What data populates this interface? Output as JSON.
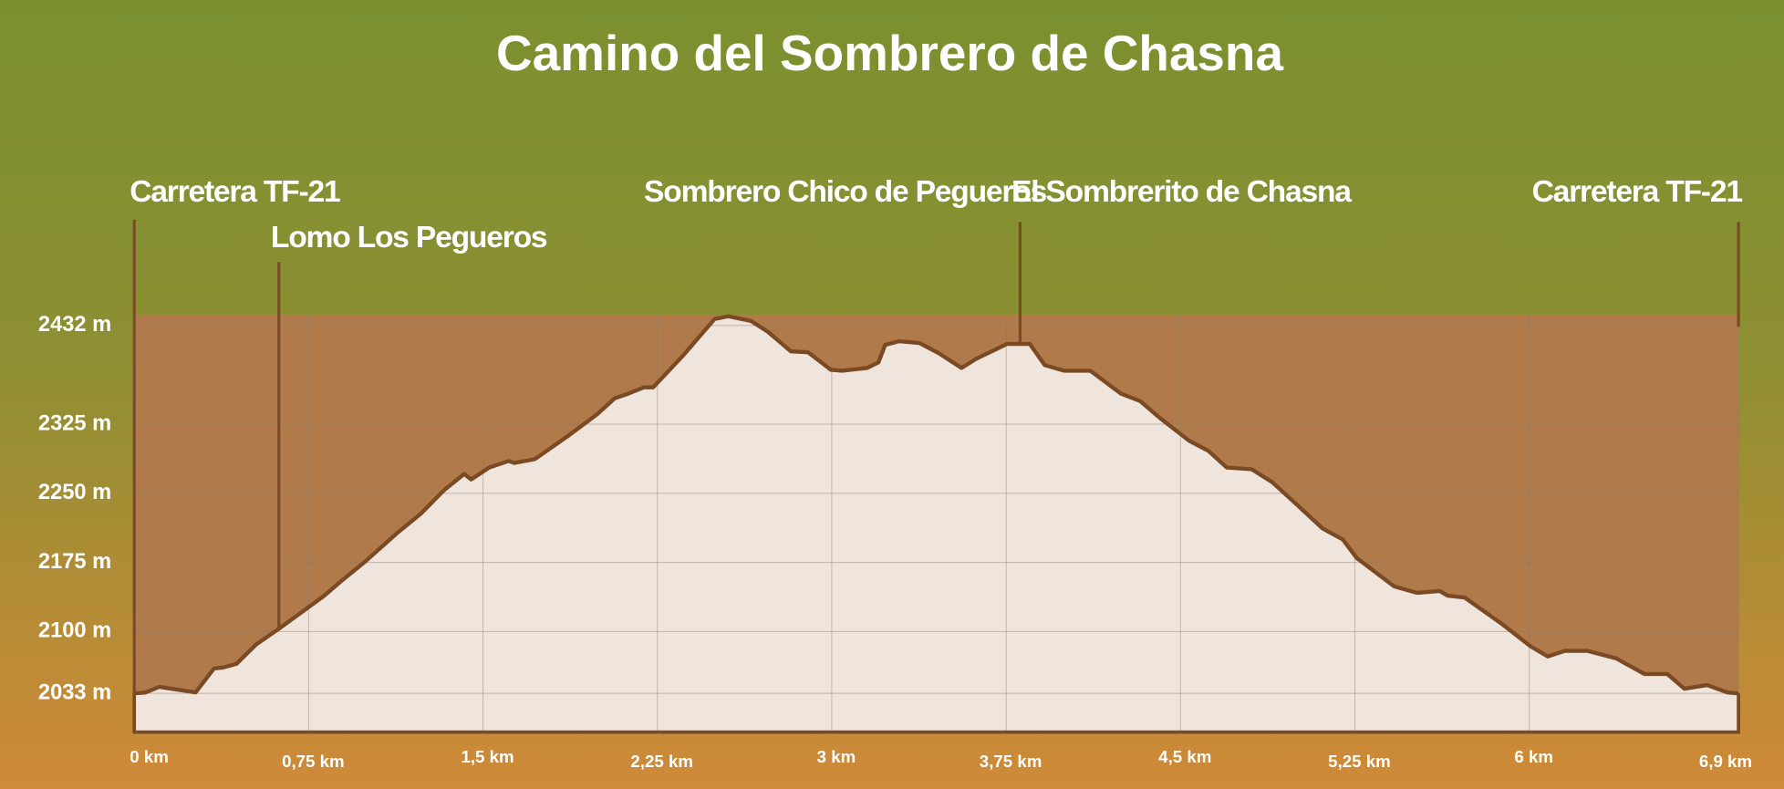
{
  "chart_data": {
    "type": "elevation-profile",
    "title": "Camino del Sombrero de Chasna",
    "x": [
      0,
      0.049,
      0.108,
      0.264,
      0.343,
      0.382,
      0.44,
      0.524,
      0.622,
      0.817,
      0.891,
      0.989,
      1.136,
      1.233,
      1.331,
      1.419,
      1.449,
      1.527,
      1.61,
      1.635,
      1.723,
      1.87,
      1.992,
      2.066,
      2.124,
      2.193,
      2.232,
      2.359,
      2.496,
      2.555,
      2.653,
      2.726,
      2.824,
      2.898,
      2.996,
      3.045,
      3.152,
      3.201,
      3.23,
      3.289,
      3.377,
      3.46,
      3.558,
      3.622,
      3.754,
      3.852,
      3.916,
      3.999,
      4.112,
      4.244,
      4.327,
      4.405,
      4.537,
      4.62,
      4.699,
      4.807,
      4.895,
      5.003,
      5.11,
      5.198,
      5.257,
      5.419,
      5.517,
      5.615,
      5.649,
      5.722,
      5.884,
      6.006,
      6.08,
      6.153,
      6.251,
      6.373,
      6.496,
      6.594,
      6.667,
      6.765,
      6.853,
      6.9
    ],
    "values": [
      2033,
      2034,
      2040,
      2034,
      2060,
      2061,
      2065,
      2086,
      2103,
      2139,
      2155,
      2175,
      2208,
      2228,
      2253,
      2271,
      2265,
      2278,
      2285,
      2283,
      2287,
      2313,
      2336,
      2353,
      2358,
      2365,
      2365,
      2399,
      2439,
      2442,
      2437,
      2425,
      2404,
      2403,
      2384,
      2383,
      2386,
      2392,
      2411,
      2415,
      2413,
      2402,
      2386,
      2396,
      2412,
      2412,
      2389,
      2383,
      2383,
      2358,
      2350,
      2333,
      2307,
      2296,
      2278,
      2276,
      2262,
      2237,
      2212,
      2200,
      2180,
      2149,
      2142,
      2144,
      2139,
      2137,
      2108,
      2084,
      2073,
      2079,
      2079,
      2071,
      2054,
      2054,
      2038,
      2042,
      2034,
      2033
    ],
    "xlim": [
      0,
      6.9
    ],
    "ylim": [
      1991,
      2443
    ],
    "xticks": [
      {
        "value": 0,
        "label": "0 km"
      },
      {
        "value": 0.75,
        "label": "0,75 km"
      },
      {
        "value": 1.5,
        "label": "1,5 km"
      },
      {
        "value": 2.25,
        "label": "2,25 km"
      },
      {
        "value": 3,
        "label": "3 km"
      },
      {
        "value": 3.75,
        "label": "3,75 km"
      },
      {
        "value": 4.5,
        "label": "4,5 km"
      },
      {
        "value": 5.25,
        "label": "5,25 km"
      },
      {
        "value": 6,
        "label": "6  km"
      },
      {
        "value": 6.9,
        "label": "6,9 km"
      }
    ],
    "yticks": [
      {
        "value": 2033,
        "label": "2033 m"
      },
      {
        "value": 2100,
        "label": "2100 m"
      },
      {
        "value": 2175,
        "label": "2175 m"
      },
      {
        "value": 2250,
        "label": "2250 m"
      },
      {
        "value": 2325,
        "label": "2325 m"
      },
      {
        "value": 2432,
        "label": "2432 m"
      }
    ],
    "grid": true,
    "color": "#7a4a25",
    "annotations": [
      {
        "label": "Carretera TF-21",
        "x": 0
      },
      {
        "label": "Lomo Los Pegueros",
        "x": 0.622
      },
      {
        "label": "Sombrero Chico de Pegueros"
      },
      {
        "label": "El Sombrerito de Chasna",
        "x": 3.81
      },
      {
        "label": "Carretera TF-21",
        "x": 6.9
      }
    ]
  }
}
